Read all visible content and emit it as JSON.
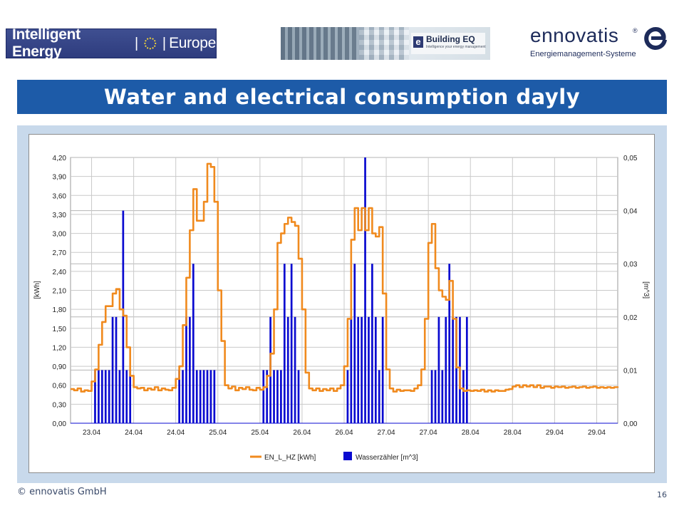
{
  "logos": {
    "ie_left": "Intelligent Energy",
    "ie_right": "Europe",
    "beq_name": "Building EQ",
    "beq_tagline": "Intelligence your energy management",
    "ennovatis_word": "ennovatis",
    "ennovatis_reg": "®",
    "ennovatis_sub": "Energiemanagement-Systeme"
  },
  "slide": {
    "title": "Water and electrical consumption dayly",
    "footer_left": "© ennovatis GmbH",
    "page_number": "16"
  },
  "colors": {
    "title_bar": "#1d5ba8",
    "frame": "#c8d9eb",
    "electric_line": "#f08a1e",
    "water_bars": "#0a0ad0"
  },
  "chart_data": {
    "type": "line+bar",
    "title": "",
    "y_left_label": "[kWh]",
    "y_right_label": "[m^3]",
    "y_left_range": [
      0,
      4.2
    ],
    "y_right_range": [
      0,
      0.05
    ],
    "y_left_ticks": [
      "0,00",
      "0,30",
      "0,60",
      "0,90",
      "1,20",
      "1,50",
      "1,80",
      "2,10",
      "2,40",
      "2,70",
      "3,00",
      "3,30",
      "3,60",
      "3,90",
      "4,20"
    ],
    "y_right_ticks": [
      "0,00",
      "0,01",
      "0,02",
      "0,03",
      "0,04",
      "0,05"
    ],
    "x_ticks": [
      "23.04",
      "24.04",
      "24.04",
      "25.04",
      "25.04",
      "26.04",
      "26.04",
      "27.04",
      "27.04",
      "28.04",
      "28.04",
      "29.04",
      "29.04"
    ],
    "x_range_hours": [
      0,
      156
    ],
    "x_tick_hours": [
      6,
      18,
      30,
      42,
      54,
      66,
      78,
      90,
      102,
      114,
      126,
      138,
      150
    ],
    "grid": true,
    "legend_position": "bottom",
    "series": [
      {
        "name": "EN_L_HZ [kWh]",
        "type": "line",
        "axis": "left",
        "points": [
          [
            0,
            0.54
          ],
          [
            1,
            0.52
          ],
          [
            2,
            0.55
          ],
          [
            3,
            0.5
          ],
          [
            4,
            0.52
          ],
          [
            5,
            0.51
          ],
          [
            6,
            0.66
          ],
          [
            7,
            0.85
          ],
          [
            8,
            1.24
          ],
          [
            9,
            1.6
          ],
          [
            10,
            1.85
          ],
          [
            11,
            1.85
          ],
          [
            12,
            2.05
          ],
          [
            13,
            2.12
          ],
          [
            14,
            1.8
          ],
          [
            15,
            1.7
          ],
          [
            16,
            1.2
          ],
          [
            17,
            0.75
          ],
          [
            18,
            0.57
          ],
          [
            19,
            0.55
          ],
          [
            20,
            0.56
          ],
          [
            21,
            0.52
          ],
          [
            22,
            0.55
          ],
          [
            23,
            0.53
          ],
          [
            24,
            0.57
          ],
          [
            25,
            0.52
          ],
          [
            26,
            0.55
          ],
          [
            27,
            0.53
          ],
          [
            28,
            0.52
          ],
          [
            29,
            0.56
          ],
          [
            30,
            0.7
          ],
          [
            31,
            0.9
          ],
          [
            32,
            1.55
          ],
          [
            33,
            2.3
          ],
          [
            34,
            3.05
          ],
          [
            35,
            3.7
          ],
          [
            36,
            3.2
          ],
          [
            37,
            3.2
          ],
          [
            38,
            3.5
          ],
          [
            39,
            4.1
          ],
          [
            40,
            4.05
          ],
          [
            41,
            3.5
          ],
          [
            42,
            2.1
          ],
          [
            43,
            1.3
          ],
          [
            44,
            0.6
          ],
          [
            45,
            0.55
          ],
          [
            46,
            0.58
          ],
          [
            47,
            0.52
          ],
          [
            48,
            0.56
          ],
          [
            49,
            0.54
          ],
          [
            50,
            0.57
          ],
          [
            51,
            0.53
          ],
          [
            52,
            0.52
          ],
          [
            53,
            0.56
          ],
          [
            54,
            0.53
          ],
          [
            55,
            0.57
          ],
          [
            56,
            0.75
          ],
          [
            57,
            1.1
          ],
          [
            58,
            1.8
          ],
          [
            59,
            2.85
          ],
          [
            60,
            3.0
          ],
          [
            61,
            3.15
          ],
          [
            62,
            3.25
          ],
          [
            63,
            3.18
          ],
          [
            64,
            3.12
          ],
          [
            65,
            2.6
          ],
          [
            66,
            1.8
          ],
          [
            67,
            0.8
          ],
          [
            68,
            0.55
          ],
          [
            69,
            0.52
          ],
          [
            70,
            0.55
          ],
          [
            71,
            0.51
          ],
          [
            72,
            0.54
          ],
          [
            73,
            0.52
          ],
          [
            74,
            0.55
          ],
          [
            75,
            0.51
          ],
          [
            76,
            0.55
          ],
          [
            77,
            0.6
          ],
          [
            78,
            0.9
          ],
          [
            79,
            1.65
          ],
          [
            80,
            2.9
          ],
          [
            81,
            3.4
          ],
          [
            82,
            3.05
          ],
          [
            83,
            3.4
          ],
          [
            84,
            3.05
          ],
          [
            85,
            3.4
          ],
          [
            86,
            3.0
          ],
          [
            87,
            2.95
          ],
          [
            88,
            3.1
          ],
          [
            89,
            2.05
          ],
          [
            90,
            0.85
          ],
          [
            91,
            0.55
          ],
          [
            92,
            0.5
          ],
          [
            93,
            0.53
          ],
          [
            94,
            0.51
          ],
          [
            95,
            0.52
          ],
          [
            96,
            0.52
          ],
          [
            97,
            0.51
          ],
          [
            98,
            0.55
          ],
          [
            99,
            0.6
          ],
          [
            100,
            0.85
          ],
          [
            101,
            1.65
          ],
          [
            102,
            2.85
          ],
          [
            103,
            3.15
          ],
          [
            104,
            2.45
          ],
          [
            105,
            2.1
          ],
          [
            106,
            2.0
          ],
          [
            107,
            1.95
          ],
          [
            108,
            2.25
          ],
          [
            109,
            1.65
          ],
          [
            110,
            0.88
          ],
          [
            111,
            0.55
          ],
          [
            112,
            0.51
          ],
          [
            113,
            0.52
          ],
          [
            114,
            0.51
          ],
          [
            115,
            0.52
          ],
          [
            116,
            0.51
          ],
          [
            117,
            0.53
          ],
          [
            118,
            0.5
          ],
          [
            119,
            0.52
          ],
          [
            120,
            0.5
          ],
          [
            121,
            0.52
          ],
          [
            122,
            0.51
          ],
          [
            123,
            0.51
          ],
          [
            124,
            0.53
          ],
          [
            125,
            0.54
          ],
          [
            126,
            0.58
          ],
          [
            127,
            0.6
          ],
          [
            128,
            0.57
          ],
          [
            129,
            0.6
          ],
          [
            130,
            0.58
          ],
          [
            131,
            0.6
          ],
          [
            132,
            0.57
          ],
          [
            133,
            0.6
          ],
          [
            134,
            0.56
          ],
          [
            135,
            0.58
          ],
          [
            136,
            0.58
          ],
          [
            137,
            0.56
          ],
          [
            138,
            0.58
          ],
          [
            139,
            0.57
          ],
          [
            140,
            0.58
          ],
          [
            141,
            0.56
          ],
          [
            142,
            0.57
          ],
          [
            143,
            0.58
          ],
          [
            144,
            0.56
          ],
          [
            145,
            0.57
          ],
          [
            146,
            0.58
          ],
          [
            147,
            0.56
          ],
          [
            148,
            0.57
          ],
          [
            149,
            0.58
          ],
          [
            150,
            0.56
          ],
          [
            151,
            0.57
          ],
          [
            152,
            0.56
          ],
          [
            153,
            0.57
          ],
          [
            154,
            0.56
          ],
          [
            155,
            0.57
          ],
          [
            156,
            0.56
          ]
        ]
      },
      {
        "name": "Wasserzähler [m^3]",
        "type": "bar",
        "axis": "right",
        "bars": [
          [
            7,
            0.01
          ],
          [
            8,
            0.01
          ],
          [
            9,
            0.01
          ],
          [
            10,
            0.01
          ],
          [
            11,
            0.01
          ],
          [
            12,
            0.02
          ],
          [
            13,
            0.02
          ],
          [
            14,
            0.01
          ],
          [
            15,
            0.04
          ],
          [
            16,
            0.01
          ],
          [
            17,
            0.01
          ],
          [
            31,
            0.01
          ],
          [
            32,
            0.01
          ],
          [
            33,
            0.02
          ],
          [
            34,
            0.02
          ],
          [
            35,
            0.03
          ],
          [
            36,
            0.01
          ],
          [
            37,
            0.01
          ],
          [
            38,
            0.01
          ],
          [
            39,
            0.01
          ],
          [
            40,
            0.01
          ],
          [
            41,
            0.01
          ],
          [
            55,
            0.01
          ],
          [
            56,
            0.01
          ],
          [
            57,
            0.02
          ],
          [
            58,
            0.01
          ],
          [
            59,
            0.01
          ],
          [
            60,
            0.01
          ],
          [
            61,
            0.03
          ],
          [
            62,
            0.02
          ],
          [
            63,
            0.03
          ],
          [
            64,
            0.02
          ],
          [
            65,
            0.01
          ],
          [
            79,
            0.01
          ],
          [
            80,
            0.02
          ],
          [
            81,
            0.03
          ],
          [
            82,
            0.02
          ],
          [
            83,
            0.02
          ],
          [
            84,
            0.05
          ],
          [
            85,
            0.02
          ],
          [
            86,
            0.03
          ],
          [
            87,
            0.02
          ],
          [
            88,
            0.01
          ],
          [
            89,
            0.02
          ],
          [
            103,
            0.01
          ],
          [
            104,
            0.01
          ],
          [
            105,
            0.02
          ],
          [
            106,
            0.01
          ],
          [
            107,
            0.02
          ],
          [
            108,
            0.03
          ],
          [
            109,
            0.02
          ],
          [
            110,
            0.02
          ],
          [
            111,
            0.02
          ],
          [
            112,
            0.01
          ],
          [
            113,
            0.02
          ]
        ]
      }
    ],
    "legend": [
      "EN_L_HZ [kWh]",
      "Wasserzähler [m^3]"
    ]
  }
}
